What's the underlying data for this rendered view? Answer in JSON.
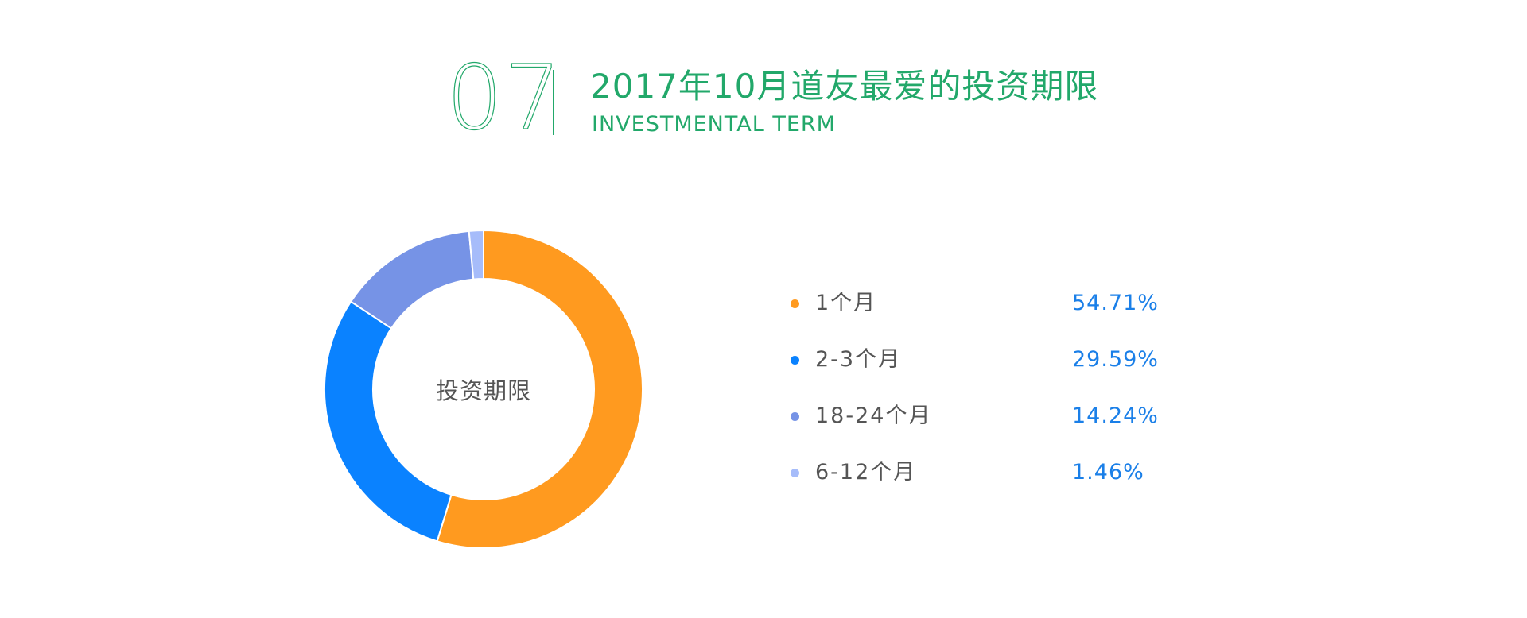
{
  "header": {
    "section_number": "07",
    "title": "2017年10月道友最爱的投资期限",
    "subtitle": "INVESTMENTAL TERM"
  },
  "colors": {
    "accent": "#22a86a",
    "value_text": "#1a7fe8",
    "label_text": "#555555"
  },
  "chart_data": {
    "type": "pie",
    "variant": "donut",
    "center_label": "投资期限",
    "start": "top",
    "direction": "clockwise",
    "legend_position": "right",
    "slices": [
      {
        "label": "1个月",
        "value": 54.71,
        "display": "54.71%",
        "color": "#ff9a1f"
      },
      {
        "label": "2-3个月",
        "value": 29.59,
        "display": "29.59%",
        "color": "#0a82ff"
      },
      {
        "label": "18-24个月",
        "value": 14.24,
        "display": "14.24%",
        "color": "#7693e6"
      },
      {
        "label": "6-12个月",
        "value": 1.46,
        "display": "1.46%",
        "color": "#a6bcfa"
      }
    ]
  }
}
